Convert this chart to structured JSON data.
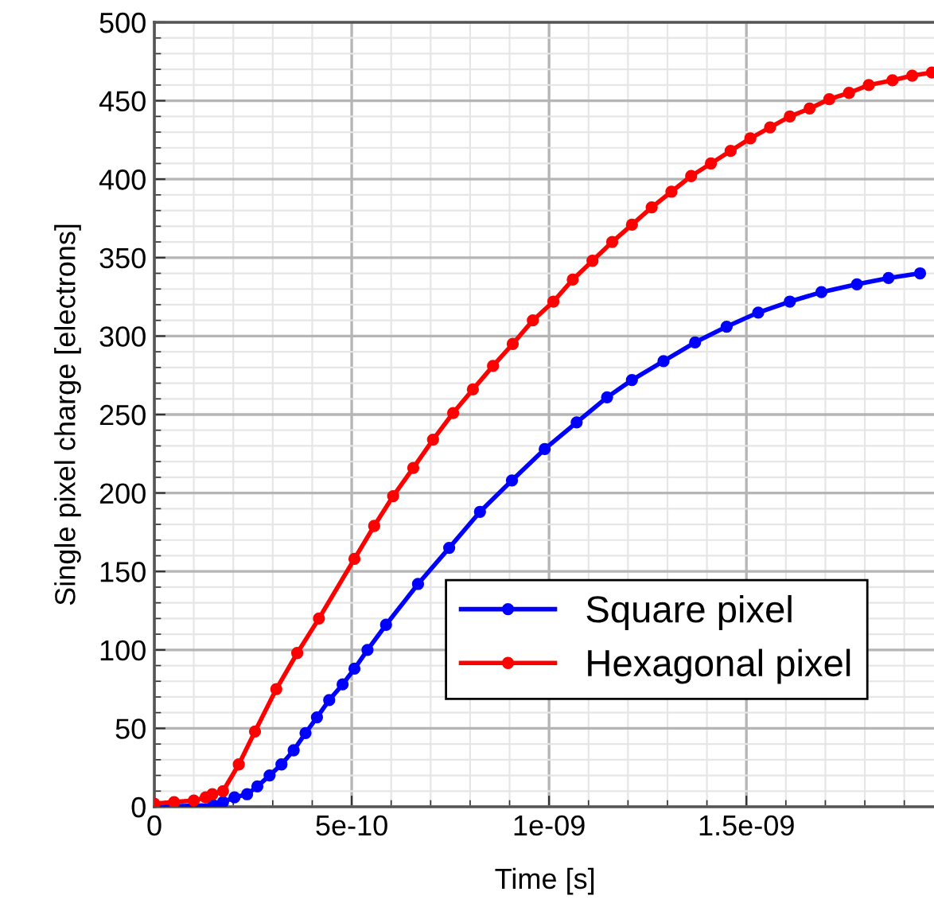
{
  "chart_data": {
    "type": "line",
    "xlabel": "Time [s]",
    "ylabel": "Single pixel charge [electrons]",
    "xlim": [
      0,
      1.98e-09
    ],
    "ylim": [
      0,
      500
    ],
    "xticks": [
      0,
      {
        "value": 5e-10,
        "label": "5e-10"
      },
      {
        "value": 1e-09,
        "label": "1e-09"
      },
      {
        "value": 1.5e-09,
        "label": "1.5e-09"
      }
    ],
    "yticks": [
      0,
      50,
      100,
      150,
      200,
      250,
      300,
      350,
      400,
      450,
      500
    ],
    "grid": true,
    "legend": "bottom right",
    "marker": "circle",
    "line_style": "solid",
    "series": [
      {
        "name": "Square pixel",
        "color": "#0000ff",
        "x": [
          0,
          1.5e-10,
          1.74e-10,
          2.03e-10,
          2.35e-10,
          2.61e-10,
          2.92e-10,
          3.22e-10,
          3.53e-10,
          3.83e-10,
          4.12e-10,
          4.43e-10,
          4.77e-10,
          5.07e-10,
          5.4e-10,
          5.87e-10,
          6.68e-10,
          7.47e-10,
          8.25e-10,
          9.06e-10,
          9.89e-10,
          1.07e-09,
          1.147e-09,
          1.21e-09,
          1.29e-09,
          1.37e-09,
          1.45e-09,
          1.53e-09,
          1.61e-09,
          1.69e-09,
          1.78e-09,
          1.86e-09,
          1.94e-09
        ],
        "values": [
          0,
          1,
          3,
          6,
          8,
          13,
          20,
          27,
          36,
          47,
          57,
          68,
          78,
          88,
          100,
          116,
          142,
          165,
          188,
          208,
          228,
          245,
          261,
          272,
          284,
          296,
          306,
          315,
          322,
          328,
          333,
          337,
          340
        ]
      },
      {
        "name": "Hexagonal pixel",
        "color": "#ff0000",
        "x": [
          0,
          5e-11,
          1e-10,
          1.3e-10,
          1.47e-10,
          1.74e-10,
          2.14e-10,
          2.55e-10,
          3.09e-10,
          3.62e-10,
          4.17e-10,
          5.07e-10,
          5.57e-10,
          6.05e-10,
          6.56e-10,
          7.06e-10,
          7.57e-10,
          8.07e-10,
          8.58e-10,
          9.08e-10,
          9.59e-10,
          1.011e-09,
          1.06e-09,
          1.11e-09,
          1.16e-09,
          1.21e-09,
          1.26e-09,
          1.31e-09,
          1.36e-09,
          1.41e-09,
          1.46e-09,
          1.51e-09,
          1.56e-09,
          1.61e-09,
          1.66e-09,
          1.71e-09,
          1.76e-09,
          1.81e-09,
          1.87e-09,
          1.92e-09,
          1.97e-09
        ],
        "values": [
          2,
          3,
          4,
          6,
          8,
          10,
          27,
          48,
          75,
          98,
          120,
          158,
          179,
          198,
          216,
          234,
          251,
          266,
          281,
          295,
          310,
          322,
          336,
          348,
          360,
          371,
          382,
          392,
          402,
          410,
          418,
          426,
          433,
          440,
          445,
          451,
          455,
          460,
          463,
          466,
          468
        ]
      }
    ]
  }
}
